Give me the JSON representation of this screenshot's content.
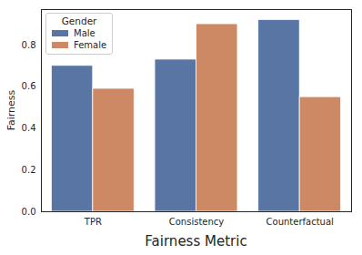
{
  "chart_data": {
    "type": "bar",
    "x_label": "Fairness Metric",
    "y_label": "Fairness",
    "categories": [
      "TPR",
      "Consistency",
      "Counterfactual"
    ],
    "series": [
      {
        "name": "Male",
        "color": "#5975a4",
        "values": [
          0.7,
          0.73,
          0.92
        ]
      },
      {
        "name": "Female",
        "color": "#cc8963",
        "values": [
          0.59,
          0.9,
          0.55
        ]
      }
    ],
    "ylim": [
      0,
      0.97
    ],
    "yticks": [
      {
        "value": 0,
        "label": "0.0"
      },
      0.2,
      0.4,
      0.6,
      0.8
    ],
    "grid": false,
    "legend": "upper left",
    "legend_title": "Gender"
  }
}
